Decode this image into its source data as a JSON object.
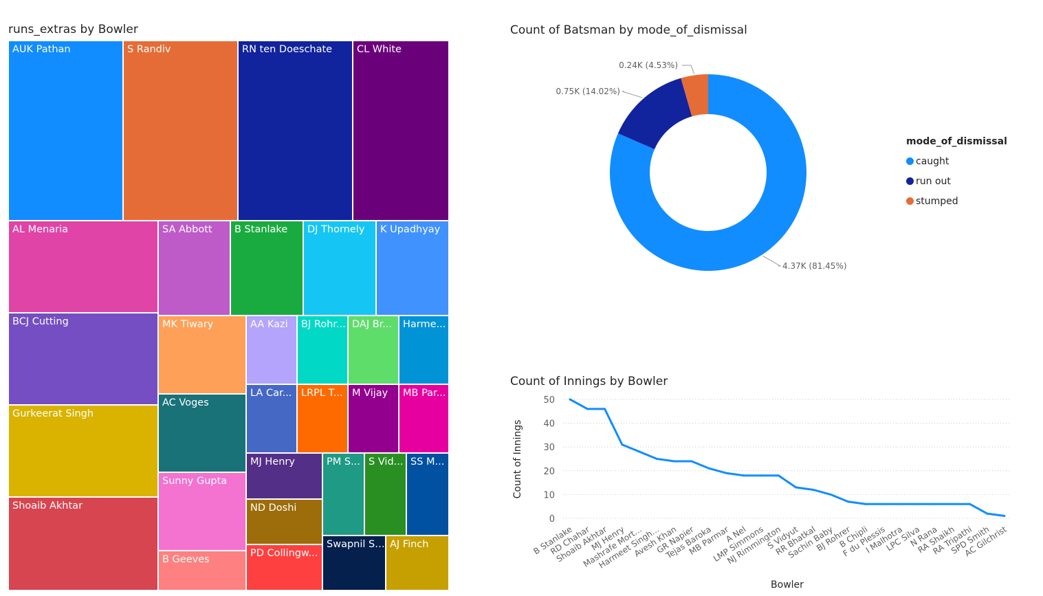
{
  "treemap": {
    "title": "runs_extras by Bowler",
    "tiles": [
      {
        "label": "AUK Pathan",
        "color": "#118DFF"
      },
      {
        "label": "S Randiv",
        "color": "#E66C37"
      },
      {
        "label": "RN ten Doeschate",
        "color": "#12239E"
      },
      {
        "label": "CL White",
        "color": "#6B007B"
      },
      {
        "label": "AL Menaria",
        "color": "#E044A7"
      },
      {
        "label": "SA Abbott",
        "color": "#BE5BC8"
      },
      {
        "label": "B Stanlake",
        "color": "#1AAB40"
      },
      {
        "label": "DJ Thornely",
        "color": "#15C6F4"
      },
      {
        "label": "K Upadhyay",
        "color": "#4092FF"
      },
      {
        "label": "BCJ Cutting",
        "color": "#744EC2"
      },
      {
        "label": "Gurkeerat Singh",
        "color": "#D9B300"
      },
      {
        "label": "Shoaib Akhtar",
        "color": "#D64550"
      },
      {
        "label": "MK Tiwary",
        "color": "#FFA058"
      },
      {
        "label": "AA Kazi",
        "color": "#B4A4FB"
      },
      {
        "label": "BJ Rohr...",
        "color": "#02D8C6"
      },
      {
        "label": "DAJ Br...",
        "color": "#5FDD6A"
      },
      {
        "label": "Harme...",
        "color": "#0093D5"
      },
      {
        "label": "AC Voges",
        "color": "#197278"
      },
      {
        "label": "LA Car...",
        "color": "#4668C5"
      },
      {
        "label": "LRPL T...",
        "color": "#FF6A00"
      },
      {
        "label": "M Vijay",
        "color": "#93008D"
      },
      {
        "label": "MB Par...",
        "color": "#E7009F"
      },
      {
        "label": "Sunny Gupta",
        "color": "#F472D0"
      },
      {
        "label": "MJ Henry",
        "color": "#532F87"
      },
      {
        "label": "PM S...",
        "color": "#1F9A85"
      },
      {
        "label": "S Vid...",
        "color": "#2A8F23"
      },
      {
        "label": "SS M...",
        "color": "#0151A2"
      },
      {
        "label": "ND Doshi",
        "color": "#9C6D0A"
      },
      {
        "label": "B Geeves",
        "color": "#FF8080"
      },
      {
        "label": "PD Collingw...",
        "color": "#FF4040"
      },
      {
        "label": "Swapnil Si...",
        "color": "#05204D"
      },
      {
        "label": "AJ Finch",
        "color": "#C6A000"
      }
    ]
  },
  "donut": {
    "title": "Count of Batsman by mode_of_dismissal",
    "legend_title": "mode_of_dismissal"
  },
  "line": {
    "title": "Count of Innings by Bowler"
  },
  "chart_data": [
    {
      "type": "treemap",
      "title": "runs_extras by Bowler",
      "categories": [
        "AUK Pathan",
        "S Randiv",
        "RN ten Doeschate",
        "CL White",
        "AL Menaria",
        "SA Abbott",
        "B Stanlake",
        "DJ Thornely",
        "K Upadhyay",
        "BCJ Cutting",
        "Gurkeerat Singh",
        "Shoaib Akhtar",
        "MK Tiwary",
        "AA Kazi",
        "BJ Rohr...",
        "DAJ Br...",
        "Harme...",
        "AC Voges",
        "LA Car...",
        "LRPL T...",
        "M Vijay",
        "MB Par...",
        "Sunny Gupta",
        "MJ Henry",
        "PM S...",
        "S Vid...",
        "SS M...",
        "ND Doshi",
        "B Geeves",
        "PD Collingw...",
        "Swapnil Si...",
        "AJ Finch"
      ]
    },
    {
      "type": "pie",
      "donut": true,
      "title": "Count of Batsman by mode_of_dismissal",
      "legend_title": "mode_of_dismissal",
      "legend": "right",
      "slices": [
        {
          "name": "caught",
          "value": 4370,
          "label": "4.37K (81.45%)",
          "color": "#118DFF"
        },
        {
          "name": "run out",
          "value": 750,
          "label": "0.75K (14.02%)",
          "color": "#12239E"
        },
        {
          "name": "stumped",
          "value": 240,
          "label": "0.24K (4.53%)",
          "color": "#E66C37"
        }
      ]
    },
    {
      "type": "line",
      "title": "Count of Innings by Bowler",
      "xlabel": "Bowler",
      "ylabel": "Count of Innings",
      "ylim": [
        0,
        50
      ],
      "yticks": [
        0,
        10,
        20,
        30,
        40,
        50
      ],
      "grid": true,
      "color": "#118DFF",
      "categories": [
        "B Stanlake",
        "RD Chahar",
        "Shoaib Akhtar",
        "MJ Henry",
        "Mashrafe Mort...",
        "Harmeet Singh...",
        "Avesh Khan",
        "GR Napier",
        "Tejas Baroka",
        "MB Parmar",
        "A Nel",
        "LMP Simmons",
        "NJ Rimmington",
        "S Vidyut",
        "RR Bhatkal",
        "Sachin Baby",
        "BJ Rohrer",
        "B Chipli",
        "F du Plessis",
        "I Malhotra",
        "LPC Silva",
        "N Rana",
        "RA Shaikh",
        "RA Tripathi",
        "SPD Smith",
        "AC Gilchrist"
      ],
      "values": [
        50,
        46,
        46,
        31,
        28,
        25,
        24,
        24,
        21,
        19,
        18,
        18,
        18,
        13,
        12,
        10,
        7,
        6,
        6,
        6,
        6,
        6,
        6,
        6,
        2,
        1
      ]
    }
  ]
}
